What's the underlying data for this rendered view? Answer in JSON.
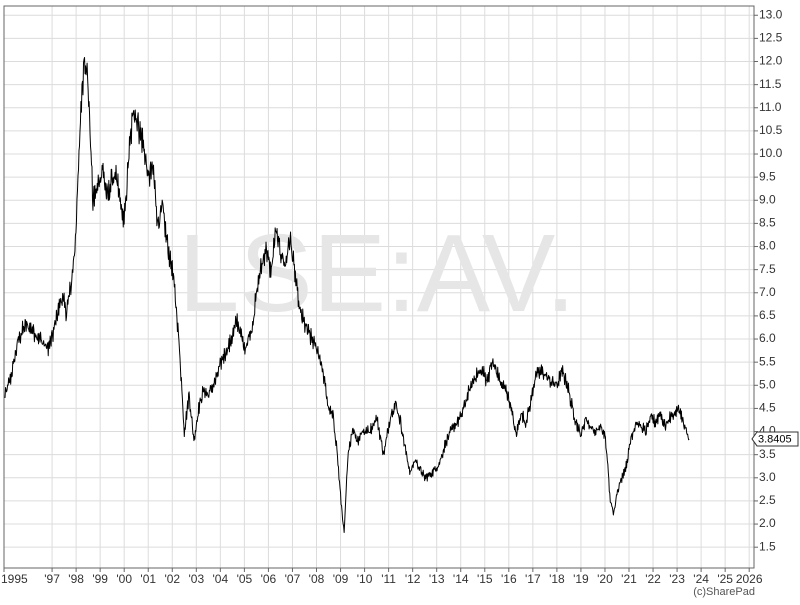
{
  "chart_data": {
    "type": "line",
    "title": "",
    "xlabel": "",
    "ylabel": "",
    "watermark": "LSE:AV.",
    "credit": "(c)SharePad",
    "last_value_label": "3.8405",
    "x_tick_labels": [
      "1995",
      "'97",
      "'98",
      "'99",
      "'00",
      "'01",
      "'02",
      "'03",
      "'04",
      "'05",
      "'06",
      "'07",
      "'08",
      "'09",
      "'10",
      "'11",
      "'12",
      "'13",
      "'14",
      "'15",
      "'16",
      "'17",
      "'18",
      "'19",
      "'20",
      "'21",
      "'22",
      "'23",
      "'24",
      "'25",
      "2026"
    ],
    "x_tick_years": [
      1995,
      1997,
      1998,
      1999,
      2000,
      2001,
      2002,
      2003,
      2004,
      2005,
      2006,
      2007,
      2008,
      2009,
      2010,
      2011,
      2012,
      2013,
      2014,
      2015,
      2016,
      2017,
      2018,
      2019,
      2020,
      2021,
      2022,
      2023,
      2024,
      2025,
      2026
    ],
    "y_tick_labels": [
      "1.5",
      "2.0",
      "2.5",
      "3.0",
      "3.5",
      "4.0",
      "4.5",
      "5.0",
      "5.5",
      "6.0",
      "6.5",
      "7.0",
      "7.5",
      "8.0",
      "8.5",
      "9.0",
      "9.5",
      "10.0",
      "10.5",
      "11.0",
      "11.5",
      "12.0",
      "12.5",
      "13.0"
    ],
    "ylim": [
      1.05,
      13.2
    ],
    "xlim": [
      1995.0,
      2026.2
    ],
    "grid": true,
    "colors": {
      "line": "#000000",
      "grid": "#dcdcdc",
      "watermark": "#e6e6e6",
      "axis": "#666666",
      "text": "#333333",
      "credit": "#555555"
    },
    "series": [
      {
        "x": [
          1995.0,
          1995.3,
          1995.6,
          1995.9,
          1996.2,
          1996.5,
          1996.8,
          1997.0,
          1997.2,
          1997.4,
          1997.6,
          1997.8,
          1997.95,
          1998.1,
          1998.2,
          1998.35,
          1998.5,
          1998.7,
          1998.9,
          1999.1,
          1999.3,
          1999.5,
          1999.7,
          1999.9,
          2000.0,
          2000.2,
          2000.4,
          2000.6,
          2000.8,
          2001.0,
          2001.2,
          2001.4,
          2001.6,
          2001.8,
          2002.0,
          2002.15,
          2002.3,
          2002.5,
          2002.7,
          2002.9,
          2003.1,
          2003.3,
          2003.5,
          2003.8,
          2004.1,
          2004.4,
          2004.7,
          2005.0,
          2005.3,
          2005.6,
          2005.9,
          2006.1,
          2006.3,
          2006.5,
          2006.7,
          2006.9,
          2007.1,
          2007.3,
          2007.6,
          2007.9,
          2008.1,
          2008.3,
          2008.5,
          2008.7,
          2008.85,
          2009.0,
          2009.15,
          2009.3,
          2009.5,
          2009.7,
          2009.9,
          2010.2,
          2010.5,
          2010.8,
          2011.1,
          2011.3,
          2011.5,
          2011.7,
          2011.9,
          2012.1,
          2012.3,
          2012.5,
          2012.8,
          2013.1,
          2013.4,
          2013.7,
          2014.0,
          2014.3,
          2014.6,
          2014.9,
          2015.1,
          2015.3,
          2015.5,
          2015.7,
          2015.9,
          2016.1,
          2016.3,
          2016.5,
          2016.7,
          2016.9,
          2017.1,
          2017.4,
          2017.7,
          2018.0,
          2018.2,
          2018.4,
          2018.6,
          2018.8,
          2019.0,
          2019.2,
          2019.4,
          2019.6,
          2019.8,
          2020.0,
          2020.1,
          2020.2,
          2020.35,
          2020.5,
          2020.7,
          2020.9,
          2021.1,
          2021.3,
          2021.5,
          2021.7,
          2021.9,
          2022.1,
          2022.3,
          2022.5,
          2022.7,
          2022.9,
          2023.1,
          2023.3,
          2023.5
        ],
        "y": [
          4.7,
          5.2,
          6.0,
          6.3,
          6.2,
          6.0,
          5.8,
          6.0,
          6.5,
          6.9,
          6.6,
          7.2,
          8.0,
          9.6,
          11.0,
          12.2,
          11.5,
          9.0,
          9.3,
          9.7,
          9.0,
          9.5,
          9.4,
          8.8,
          8.5,
          10.0,
          11.0,
          10.6,
          10.2,
          9.5,
          9.7,
          8.5,
          8.8,
          8.0,
          7.5,
          6.8,
          5.8,
          4.0,
          4.8,
          3.8,
          4.5,
          4.9,
          4.8,
          5.1,
          5.6,
          5.9,
          6.4,
          5.8,
          6.2,
          7.3,
          8.0,
          7.4,
          8.3,
          7.9,
          7.6,
          8.2,
          7.4,
          6.6,
          6.2,
          5.9,
          5.7,
          5.2,
          4.5,
          4.3,
          3.6,
          2.6,
          1.8,
          3.4,
          4.1,
          3.8,
          4.0,
          4.0,
          4.3,
          3.5,
          4.4,
          4.6,
          4.2,
          3.6,
          3.1,
          3.4,
          3.2,
          3.0,
          3.1,
          3.3,
          3.8,
          4.1,
          4.3,
          4.8,
          5.2,
          5.3,
          5.1,
          5.5,
          5.3,
          5.0,
          4.9,
          4.5,
          3.9,
          4.4,
          4.2,
          4.6,
          5.2,
          5.3,
          5.1,
          5.0,
          5.3,
          5.1,
          4.6,
          4.2,
          3.9,
          4.3,
          4.1,
          4.0,
          4.1,
          3.9,
          3.4,
          2.6,
          2.2,
          2.7,
          3.0,
          3.3,
          3.9,
          4.2,
          4.1,
          4.0,
          4.3,
          4.2,
          4.4,
          4.1,
          4.3,
          4.4,
          4.5,
          4.1,
          3.84
        ]
      }
    ]
  }
}
